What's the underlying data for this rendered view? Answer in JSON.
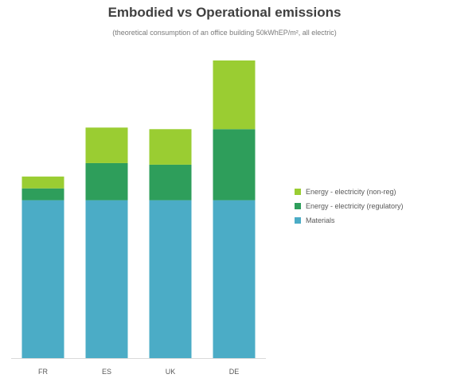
{
  "chart_data": {
    "type": "bar",
    "stacked": true,
    "title": "Embodied vs Operational emissions",
    "subtitle": "(theoretical consumption of an office building 50kWhEP/m², all electric)",
    "xlabel": "",
    "ylabel": "",
    "grid": false,
    "legend_position": "right",
    "categories": [
      "FR",
      "ES",
      "UK",
      "DE"
    ],
    "ylim": [
      0,
      380
    ],
    "series": [
      {
        "name": "Materials",
        "color": "#4bacc6",
        "values": [
          200,
          200,
          200,
          200
        ]
      },
      {
        "name": "Energy - electricity (regulatory)",
        "color": "#2e9e5b",
        "values": [
          15,
          47,
          45,
          90
        ]
      },
      {
        "name": "Energy - electricity (non-reg)",
        "color": "#9acd32",
        "values": [
          15,
          45,
          45,
          87
        ]
      }
    ]
  },
  "legend": {
    "items": [
      {
        "label": "Energy - electricity (non-reg)",
        "color": "#9acd32"
      },
      {
        "label": "Energy - electricity (regulatory)",
        "color": "#2e9e5b"
      },
      {
        "label": "Materials",
        "color": "#4bacc6"
      }
    ]
  }
}
